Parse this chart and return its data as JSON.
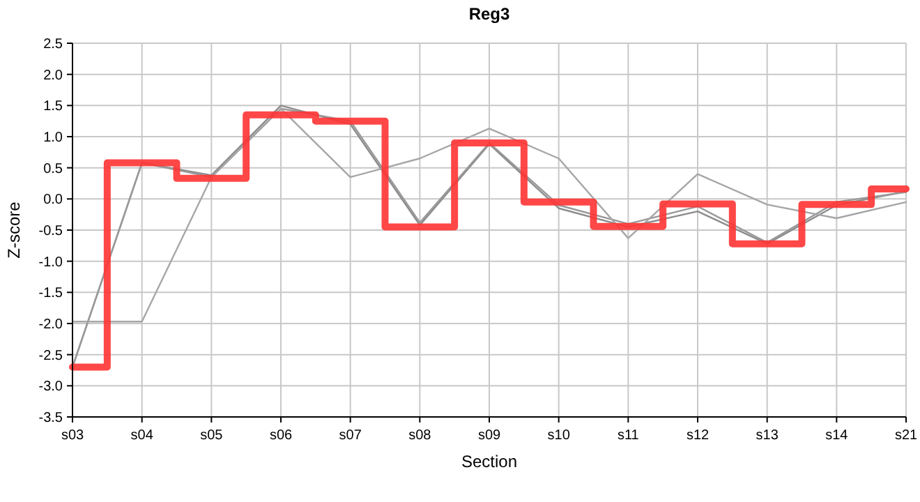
{
  "chart_data": {
    "type": "line",
    "title": "Reg3",
    "xlabel": "Section",
    "ylabel": "Z-score",
    "categories": [
      "s03",
      "s04",
      "s05",
      "s06",
      "s07",
      "s08",
      "s09",
      "s10",
      "s11",
      "s12",
      "s13",
      "s14",
      "s21"
    ],
    "ylim": [
      -3.5,
      2.5
    ],
    "yticks": [
      {
        "value": -3.5,
        "label": "-3.5"
      },
      {
        "value": -3,
        "label": "-3.0"
      },
      {
        "value": -2.5,
        "label": "-2.5"
      },
      {
        "value": -2,
        "label": "-2.0"
      },
      {
        "value": -1.5,
        "label": "-1.5"
      },
      {
        "value": -1,
        "label": "-1.0"
      },
      {
        "value": -0.5,
        "label": "-0.5"
      },
      {
        "value": 0,
        "label": "0.0"
      },
      {
        "value": 0.5,
        "label": "0.5"
      },
      {
        "value": 1,
        "label": "1.0"
      },
      {
        "value": 1.5,
        "label": "1.5"
      },
      {
        "value": 2,
        "label": "2.0"
      },
      {
        "value": 2.5,
        "label": "2.5"
      }
    ],
    "grid": true,
    "marker": "none",
    "line_style": "solid",
    "series": [
      {
        "color": "#8c8c8c",
        "values": [
          -2.7,
          0.58,
          0.38,
          1.5,
          1.2,
          -0.42,
          0.88,
          -0.15,
          -0.45,
          -0.2,
          -0.72,
          -0.1,
          0.12
        ]
      },
      {
        "color": "#999999",
        "values": [
          -2.7,
          0.58,
          0.35,
          1.45,
          1.25,
          -0.38,
          0.9,
          -0.1,
          -0.4,
          -0.12,
          -0.7,
          -0.05,
          0.11
        ]
      },
      {
        "color": "#a6a6a6",
        "values": [
          -1.97,
          -1.97,
          0.35,
          1.45,
          0.35,
          0.65,
          1.13,
          0.65,
          -0.63,
          0.4,
          -0.09,
          -0.31,
          -0.05
        ]
      },
      {
        "type": "step",
        "color": "#ff3333",
        "values": [
          -2.7,
          0.58,
          0.33,
          1.35,
          1.25,
          -0.45,
          0.9,
          -0.05,
          -0.44,
          -0.08,
          -0.72,
          -0.09,
          0.16
        ]
      }
    ]
  }
}
